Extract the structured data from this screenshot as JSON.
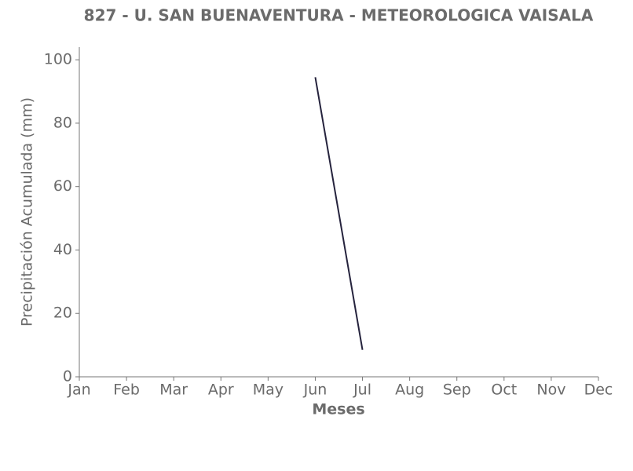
{
  "chart_data": {
    "type": "line",
    "title": "827 - U. SAN BUENAVENTURA - METEOROLOGICA VAISALA",
    "x_label": "Meses",
    "y_label": "Precipitación Acumulada (mm)",
    "categories": [
      "Jan",
      "Feb",
      "Mar",
      "Apr",
      "May",
      "Jun",
      "Jul",
      "Aug",
      "Sep",
      "Oct",
      "Nov",
      "Dec"
    ],
    "values": [
      null,
      null,
      null,
      null,
      null,
      94.5,
      8.5,
      null,
      null,
      null,
      null,
      null
    ],
    "color": "#25233d",
    "ylim": [
      0,
      104
    ],
    "yticks": [
      0,
      20,
      40,
      60,
      80,
      100
    ],
    "grid": false
  }
}
